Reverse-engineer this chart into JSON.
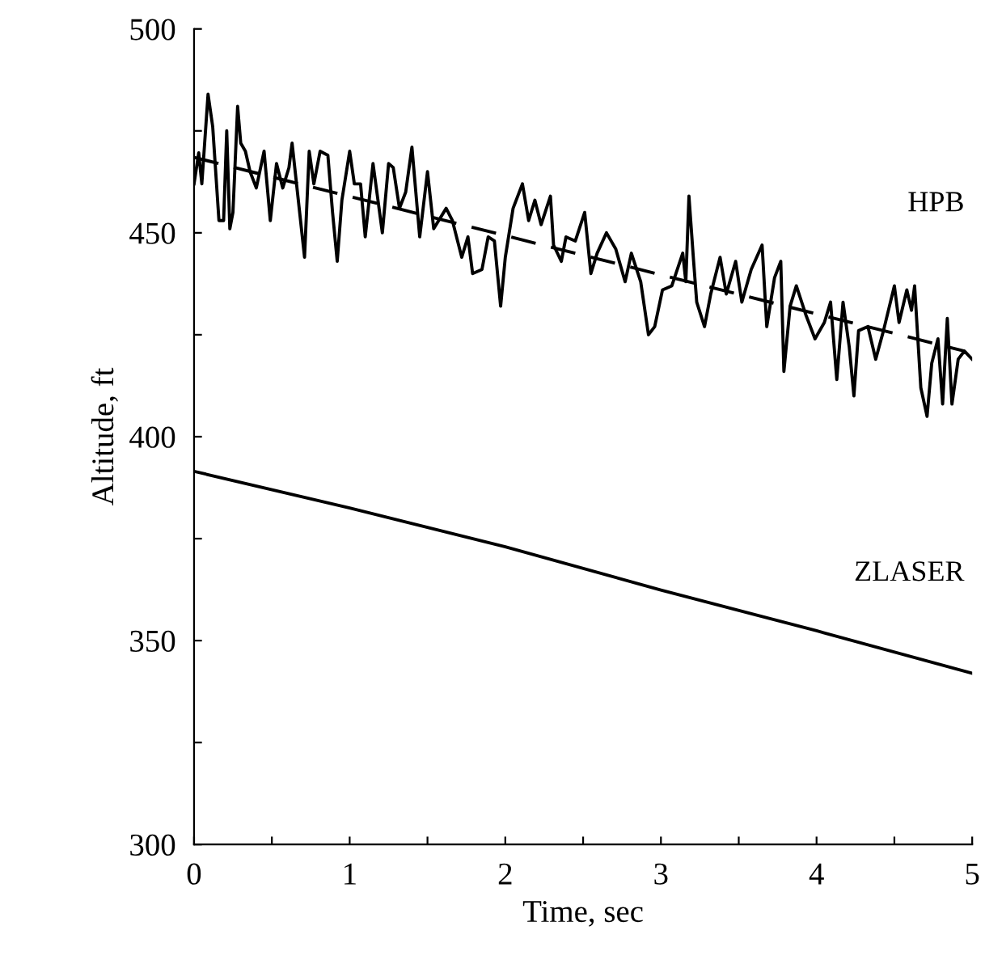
{
  "chart_data": {
    "type": "line",
    "xlabel": "Time, sec",
    "ylabel": "Altitude, ft",
    "xlim": [
      0,
      5
    ],
    "ylim": [
      300,
      500
    ],
    "xticks": [
      0,
      {
        "value": 0.5,
        "label": null
      },
      1,
      {
        "value": 1.5,
        "label": null
      },
      2,
      {
        "value": 2.5,
        "label": null
      },
      3,
      {
        "value": 3.5,
        "label": null
      },
      4,
      {
        "value": 4.5,
        "label": null
      },
      5
    ],
    "yticks": [
      300,
      {
        "value": 325,
        "label": null
      },
      350,
      {
        "value": 375,
        "label": null
      },
      400,
      {
        "value": 425,
        "label": null
      },
      450,
      {
        "value": 475,
        "label": null
      },
      500
    ],
    "grid": false,
    "legend": false,
    "marker": "none",
    "series": [
      {
        "name": "HPB",
        "color": "#000000",
        "line_style": "solid",
        "x": [
          0,
          0.03,
          0.05,
          0.09,
          0.12,
          0.16,
          0.19,
          0.21,
          0.23,
          0.25,
          0.28,
          0.3,
          0.33,
          0.36,
          0.4,
          0.45,
          0.49,
          0.53,
          0.57,
          0.61,
          0.63,
          0.67,
          0.71,
          0.74,
          0.77,
          0.81,
          0.86,
          0.89,
          0.92,
          0.95,
          1.0,
          1.03,
          1.07,
          1.1,
          1.15,
          1.21,
          1.25,
          1.28,
          1.32,
          1.36,
          1.4,
          1.45,
          1.5,
          1.54,
          1.62,
          1.66,
          1.72,
          1.76,
          1.79,
          1.85,
          1.89,
          1.93,
          1.97,
          2.0,
          2.05,
          2.11,
          2.15,
          2.19,
          2.23,
          2.29,
          2.31,
          2.36,
          2.39,
          2.45,
          2.51,
          2.55,
          2.59,
          2.65,
          2.71,
          2.77,
          2.81,
          2.87,
          2.92,
          2.96,
          3.01,
          3.07,
          3.14,
          3.16,
          3.18,
          3.21,
          3.23,
          3.28,
          3.32,
          3.38,
          3.42,
          3.48,
          3.52,
          3.58,
          3.65,
          3.68,
          3.73,
          3.77,
          3.79,
          3.83,
          3.87,
          3.93,
          3.99,
          4.05,
          4.09,
          4.13,
          4.17,
          4.21,
          4.24,
          4.27,
          4.33,
          4.38,
          4.43,
          4.5,
          4.53,
          4.58,
          4.61,
          4.63,
          4.67,
          4.71,
          4.74,
          4.78,
          4.81,
          4.84,
          4.87,
          4.91,
          4.95,
          5.0
        ],
        "values": [
          462,
          469.6,
          462,
          484,
          476,
          453,
          453,
          475,
          451,
          455,
          481,
          472,
          470,
          465,
          461,
          470,
          453,
          467,
          461,
          466,
          472,
          458,
          444,
          470,
          462,
          470,
          469,
          455,
          443,
          458,
          470,
          462,
          462,
          449,
          467,
          450,
          467,
          466,
          456,
          460,
          471,
          449,
          465,
          451,
          456,
          453,
          444,
          449,
          440,
          441,
          449,
          448,
          432,
          444,
          456,
          462,
          453,
          458,
          452,
          459,
          447,
          443,
          449,
          448,
          455,
          440,
          445,
          450,
          446,
          438,
          445,
          438,
          425,
          427,
          436,
          437,
          445,
          438,
          459,
          443,
          433,
          427,
          435,
          444,
          435,
          443,
          433,
          441,
          447,
          427,
          439,
          443,
          416,
          432,
          437,
          430,
          424,
          428,
          433,
          414,
          433,
          422,
          410,
          426,
          427,
          419,
          426,
          437,
          428,
          436,
          431,
          437,
          412,
          405,
          418,
          424,
          408,
          429,
          408,
          419,
          421,
          419
        ]
      },
      {
        "color": "#000000",
        "line_style": "dashed",
        "x": [
          0,
          4.95
        ],
        "values": [
          468.5,
          421
        ]
      },
      {
        "name": "ZLASER",
        "color": "#000000",
        "line_style": "solid",
        "x": [
          0,
          1,
          2,
          3,
          4,
          5
        ],
        "values": [
          391.5,
          382.5,
          373,
          362.4,
          352.4,
          342
        ]
      }
    ]
  }
}
